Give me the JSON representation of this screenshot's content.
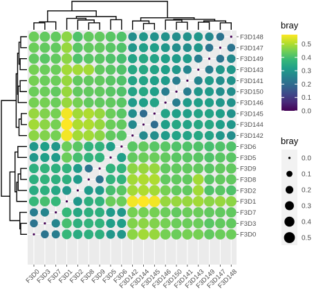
{
  "chart_data": {
    "type": "heatmap",
    "title": "",
    "xlabel": "",
    "ylabel": "",
    "x_categories": [
      "F3D0",
      "F3D3",
      "F3D7",
      "F3D1",
      "F3D2",
      "F3D8",
      "F3D9",
      "F3D5",
      "F3D6",
      "F3D142",
      "F3D144",
      "F3D145",
      "F3D146",
      "F3D150",
      "F3D141",
      "F3D143",
      "F3D149",
      "F3D147",
      "F3D148"
    ],
    "y_categories": [
      "F3D148",
      "F3D147",
      "F3D149",
      "F3D143",
      "F3D141",
      "F3D150",
      "F3D146",
      "F3D145",
      "F3D144",
      "F3D142",
      "F3D6",
      "F3D5",
      "F3D9",
      "F3D8",
      "F3D2",
      "F3D1",
      "F3D7",
      "F3D3",
      "F3D0"
    ],
    "values": [
      [
        0.44,
        0.43,
        0.43,
        0.47,
        0.41,
        0.43,
        0.43,
        0.42,
        0.41,
        0.28,
        0.3,
        0.29,
        0.29,
        0.28,
        0.29,
        0.3,
        0.27,
        0.22,
        0.0
      ],
      [
        0.44,
        0.43,
        0.43,
        0.48,
        0.42,
        0.43,
        0.43,
        0.42,
        0.41,
        0.3,
        0.32,
        0.32,
        0.3,
        0.28,
        0.28,
        0.3,
        0.22,
        0.0,
        0.22
      ],
      [
        0.43,
        0.42,
        0.43,
        0.47,
        0.41,
        0.42,
        0.42,
        0.41,
        0.4,
        0.33,
        0.34,
        0.33,
        0.32,
        0.31,
        0.31,
        0.24,
        0.0,
        0.22,
        0.27
      ],
      [
        0.45,
        0.44,
        0.44,
        0.49,
        0.49,
        0.49,
        0.43,
        0.42,
        0.41,
        0.34,
        0.34,
        0.33,
        0.32,
        0.3,
        0.26,
        0.0,
        0.24,
        0.3,
        0.3
      ],
      [
        0.45,
        0.44,
        0.44,
        0.48,
        0.43,
        0.43,
        0.43,
        0.42,
        0.41,
        0.33,
        0.33,
        0.32,
        0.31,
        0.24,
        0.0,
        0.26,
        0.31,
        0.28,
        0.29
      ],
      [
        0.44,
        0.44,
        0.43,
        0.48,
        0.43,
        0.43,
        0.43,
        0.42,
        0.41,
        0.33,
        0.34,
        0.32,
        0.24,
        0.0,
        0.24,
        0.3,
        0.31,
        0.28,
        0.28
      ],
      [
        0.45,
        0.45,
        0.44,
        0.48,
        0.45,
        0.43,
        0.43,
        0.43,
        0.42,
        0.31,
        0.32,
        0.33,
        0.0,
        0.24,
        0.31,
        0.32,
        0.32,
        0.3,
        0.29
      ],
      [
        0.48,
        0.46,
        0.45,
        0.56,
        0.49,
        0.5,
        0.48,
        0.44,
        0.42,
        0.28,
        0.2,
        0.0,
        0.33,
        0.32,
        0.32,
        0.33,
        0.33,
        0.32,
        0.29
      ],
      [
        0.49,
        0.47,
        0.45,
        0.57,
        0.5,
        0.5,
        0.48,
        0.44,
        0.43,
        0.27,
        0.0,
        0.2,
        0.32,
        0.34,
        0.33,
        0.34,
        0.34,
        0.32,
        0.3
      ],
      [
        0.47,
        0.46,
        0.45,
        0.56,
        0.49,
        0.49,
        0.47,
        0.43,
        0.42,
        0.0,
        0.27,
        0.28,
        0.31,
        0.33,
        0.33,
        0.34,
        0.33,
        0.3,
        0.28
      ],
      [
        0.3,
        0.32,
        0.3,
        0.44,
        0.42,
        0.37,
        0.37,
        0.32,
        0.0,
        0.42,
        0.43,
        0.42,
        0.42,
        0.41,
        0.41,
        0.41,
        0.4,
        0.41,
        0.41
      ],
      [
        0.3,
        0.32,
        0.31,
        0.44,
        0.4,
        0.37,
        0.37,
        0.0,
        0.32,
        0.43,
        0.44,
        0.44,
        0.43,
        0.42,
        0.42,
        0.42,
        0.41,
        0.42,
        0.42
      ],
      [
        0.36,
        0.37,
        0.36,
        0.37,
        0.31,
        0.22,
        0.0,
        0.37,
        0.37,
        0.47,
        0.48,
        0.48,
        0.43,
        0.43,
        0.43,
        0.43,
        0.42,
        0.43,
        0.43
      ],
      [
        0.36,
        0.37,
        0.36,
        0.36,
        0.31,
        0.0,
        0.22,
        0.37,
        0.37,
        0.49,
        0.5,
        0.5,
        0.43,
        0.43,
        0.43,
        0.49,
        0.42,
        0.43,
        0.43
      ],
      [
        0.35,
        0.36,
        0.34,
        0.3,
        0.0,
        0.31,
        0.31,
        0.4,
        0.42,
        0.49,
        0.5,
        0.49,
        0.45,
        0.43,
        0.43,
        0.49,
        0.41,
        0.42,
        0.41
      ],
      [
        0.38,
        0.4,
        0.38,
        0.0,
        0.3,
        0.36,
        0.37,
        0.44,
        0.44,
        0.56,
        0.57,
        0.56,
        0.48,
        0.48,
        0.48,
        0.49,
        0.47,
        0.48,
        0.47
      ],
      [
        0.24,
        0.26,
        0.0,
        0.38,
        0.34,
        0.36,
        0.36,
        0.31,
        0.3,
        0.45,
        0.45,
        0.45,
        0.44,
        0.43,
        0.44,
        0.44,
        0.43,
        0.43,
        0.43
      ],
      [
        0.22,
        0.0,
        0.26,
        0.4,
        0.36,
        0.37,
        0.37,
        0.32,
        0.32,
        0.46,
        0.47,
        0.46,
        0.45,
        0.44,
        0.44,
        0.44,
        0.42,
        0.43,
        0.43
      ],
      [
        0.0,
        0.22,
        0.24,
        0.38,
        0.35,
        0.36,
        0.36,
        0.3,
        0.3,
        0.47,
        0.49,
        0.48,
        0.45,
        0.44,
        0.45,
        0.45,
        0.43,
        0.44,
        0.44
      ]
    ],
    "color_scale": {
      "name": "viridis",
      "range": [
        0,
        0.57
      ],
      "stops": [
        "#440154",
        "#482878",
        "#3e4989",
        "#31688e",
        "#26828e",
        "#1f9e89",
        "#35b779",
        "#6ece58",
        "#b5de2b",
        "#fde725"
      ]
    },
    "size_scale": {
      "range": [
        0,
        0.57
      ]
    },
    "legends": {
      "color": {
        "title": "bray",
        "ticks": [
          "0.0",
          "0.1",
          "0.2",
          "0.3",
          "0.4",
          "0.5"
        ],
        "tick_values": [
          0,
          0.1,
          0.2,
          0.3,
          0.4,
          0.5
        ],
        "placement": "right"
      },
      "size": {
        "title": "bray",
        "labels": [
          "0.0",
          "0.1",
          "0.2",
          "0.3",
          "0.4",
          "0.5"
        ],
        "values": [
          0,
          0.1,
          0.2,
          0.3,
          0.4,
          0.5
        ],
        "placement": "right"
      }
    },
    "dendrogram_top": [
      {
        "a": "F3D0",
        "b": "F3D3",
        "h": 0.22
      },
      {
        "a": "m0",
        "b": "F3D7",
        "h": 0.25
      },
      {
        "a": "F3D8",
        "b": "F3D9",
        "h": 0.22
      },
      {
        "a": "F3D2",
        "b": "m2",
        "h": 0.31
      },
      {
        "a": "F3D1",
        "b": "m3",
        "h": 0.36
      },
      {
        "a": "F3D5",
        "b": "F3D6",
        "h": 0.32
      },
      {
        "a": "m4",
        "b": "m5",
        "h": 0.42
      },
      {
        "a": "m1",
        "b": "m6",
        "h": 0.6
      },
      {
        "a": "F3D144",
        "b": "F3D145",
        "h": 0.2
      },
      {
        "a": "F3D142",
        "b": "m8",
        "h": 0.28
      },
      {
        "a": "F3D150",
        "b": "F3D141",
        "h": 0.24
      },
      {
        "a": "F3D146",
        "b": "m10",
        "h": 0.31
      },
      {
        "a": "F3D143",
        "b": "F3D149",
        "h": 0.24
      },
      {
        "a": "F3D147",
        "b": "F3D148",
        "h": 0.22
      },
      {
        "a": "m12",
        "b": "m13",
        "h": 0.28
      },
      {
        "a": "m11",
        "b": "m14",
        "h": 0.33
      },
      {
        "a": "m9",
        "b": "m15",
        "h": 0.38
      },
      {
        "a": "m7",
        "b": "m16",
        "h": 0.9
      }
    ]
  }
}
